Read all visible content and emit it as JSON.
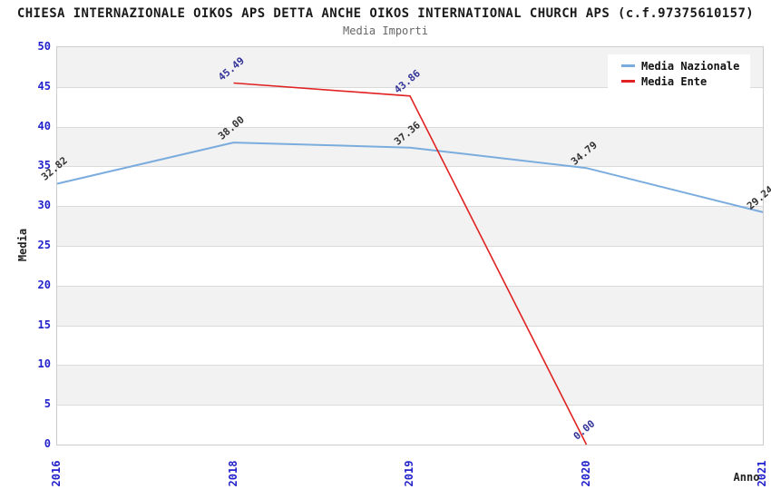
{
  "header": {
    "title": "CHIESA INTERNAZIONALE OIKOS APS DETTA ANCHE OIKOS INTERNATIONAL CHURCH APS (c.f.97375610157)",
    "subtitle": "Media Importi"
  },
  "axes": {
    "y_title": "Media",
    "x_title": "Anno",
    "y_ticks": [
      0,
      5,
      10,
      15,
      20,
      25,
      30,
      35,
      40,
      45,
      50
    ],
    "x_ticks": [
      "2016",
      "2018",
      "2019",
      "2020",
      "2021"
    ]
  },
  "legend": {
    "items": [
      {
        "label": "Media Nazionale",
        "color": "#7bacde"
      },
      {
        "label": "Media Ente",
        "color": "#e02222"
      }
    ]
  },
  "chart_data": {
    "type": "line",
    "title": "Media Importi",
    "xlabel": "Anno",
    "ylabel": "Media",
    "categories": [
      "2016",
      "2018",
      "2019",
      "2020",
      "2021"
    ],
    "series": [
      {
        "name": "Media Nazionale",
        "color": "#7bacde",
        "label_color": "#333333",
        "values": [
          32.82,
          38.0,
          37.36,
          34.79,
          29.24
        ]
      },
      {
        "name": "Media Ente",
        "color": "#e02222",
        "label_color": "#333399",
        "values": [
          null,
          45.49,
          43.86,
          0.0,
          null
        ]
      }
    ],
    "ylim": [
      0,
      50
    ],
    "y_tick_step": 5,
    "grid": true,
    "legend_position": "top-right",
    "band_colors": [
      "#f2f2f2",
      "#ffffff"
    ],
    "tick_color": "#2222cc"
  }
}
